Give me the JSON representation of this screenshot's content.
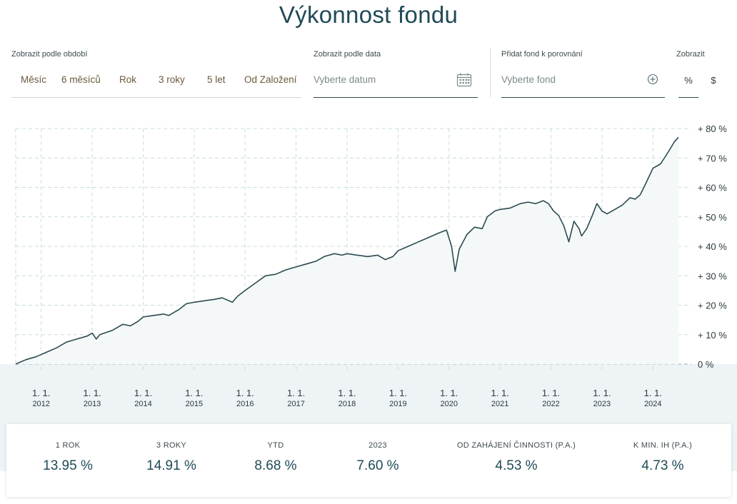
{
  "header": {
    "title": "Výkonnost fondu"
  },
  "filters": {
    "period_label": "Zobrazit podle období",
    "periods": [
      "Měsíc",
      "6 měsíců",
      "Rok",
      "3 roky",
      "5 let",
      "Od Založení"
    ],
    "date_label": "Zobrazit podle data",
    "date_placeholder": "Vyberte datum",
    "compare_label": "Přidat fond k porovnání",
    "compare_placeholder": "Vyberte fond",
    "units_label": "Zobrazit",
    "units": [
      "%",
      "$"
    ],
    "active_unit": "%"
  },
  "icons": {
    "calendar": "calendar-icon",
    "add": "plus-circle-icon"
  },
  "colors": {
    "line": "#2b4a50",
    "area": "#f4f8f9",
    "grid": "#c8dce0",
    "accent": "#1f4a55",
    "band": "#eef3f5"
  },
  "chart_data": {
    "type": "area",
    "title": "",
    "xlabel": "",
    "ylabel": "",
    "x_ticks": [
      [
        "1. 1.",
        "2012"
      ],
      [
        "1. 1.",
        "2013"
      ],
      [
        "1. 1.",
        "2014"
      ],
      [
        "1. 1.",
        "2015"
      ],
      [
        "1. 1.",
        "2016"
      ],
      [
        "1. 1.",
        "2017"
      ],
      [
        "1. 1.",
        "2018"
      ],
      [
        "1. 1.",
        "2019"
      ],
      [
        "1. 1.",
        "2020"
      ],
      [
        "1. 1.",
        "2021"
      ],
      [
        "1. 1.",
        "2022"
      ],
      [
        "1. 1.",
        "2023"
      ],
      [
        "1. 1.",
        "2024"
      ]
    ],
    "y_ticks": [
      "0 %",
      "+ 10 %",
      "+ 20 %",
      "+ 30 %",
      "+ 40 %",
      "+ 50 %",
      "+ 60 %",
      "+ 70 %",
      "+ 80 %"
    ],
    "ylim": [
      0,
      80
    ],
    "xlim": [
      2011.5,
      2024.5
    ],
    "grid": true,
    "series": [
      {
        "values": [
          [
            2011.5,
            0
          ],
          [
            2011.7,
            1.5
          ],
          [
            2011.9,
            2.5
          ],
          [
            2012.1,
            4
          ],
          [
            2012.3,
            5.5
          ],
          [
            2012.5,
            7.5
          ],
          [
            2012.7,
            8.5
          ],
          [
            2012.9,
            9.5
          ],
          [
            2013.0,
            10.5
          ],
          [
            2013.08,
            8.5
          ],
          [
            2013.15,
            10
          ],
          [
            2013.4,
            11.5
          ],
          [
            2013.6,
            13.5
          ],
          [
            2013.75,
            13
          ],
          [
            2013.9,
            14.5
          ],
          [
            2014.0,
            16
          ],
          [
            2014.2,
            16.5
          ],
          [
            2014.4,
            17
          ],
          [
            2014.5,
            16.5
          ],
          [
            2014.7,
            18.5
          ],
          [
            2014.85,
            20.5
          ],
          [
            2015.0,
            21
          ],
          [
            2015.2,
            21.5
          ],
          [
            2015.4,
            22
          ],
          [
            2015.55,
            22.5
          ],
          [
            2015.75,
            21
          ],
          [
            2015.85,
            23
          ],
          [
            2016.0,
            25
          ],
          [
            2016.2,
            27.5
          ],
          [
            2016.4,
            30
          ],
          [
            2016.6,
            30.5
          ],
          [
            2016.8,
            32
          ],
          [
            2017.0,
            33
          ],
          [
            2017.2,
            34
          ],
          [
            2017.4,
            35
          ],
          [
            2017.55,
            36.5
          ],
          [
            2017.75,
            37.5
          ],
          [
            2017.9,
            37
          ],
          [
            2018.0,
            37.5
          ],
          [
            2018.2,
            37
          ],
          [
            2018.4,
            36.5
          ],
          [
            2018.6,
            37
          ],
          [
            2018.75,
            35.5
          ],
          [
            2018.9,
            36.5
          ],
          [
            2019.0,
            38.5
          ],
          [
            2019.2,
            40
          ],
          [
            2019.4,
            41.5
          ],
          [
            2019.6,
            43
          ],
          [
            2019.8,
            44.5
          ],
          [
            2019.95,
            45.5
          ],
          [
            2020.05,
            40
          ],
          [
            2020.12,
            31.5
          ],
          [
            2020.2,
            39
          ],
          [
            2020.35,
            44
          ],
          [
            2020.5,
            46.5
          ],
          [
            2020.65,
            46
          ],
          [
            2020.75,
            50
          ],
          [
            2020.9,
            52
          ],
          [
            2021.0,
            52.5
          ],
          [
            2021.2,
            53
          ],
          [
            2021.4,
            54.5
          ],
          [
            2021.55,
            55
          ],
          [
            2021.7,
            54.5
          ],
          [
            2021.85,
            55.5
          ],
          [
            2021.95,
            54.5
          ],
          [
            2022.05,
            52
          ],
          [
            2022.15,
            50.5
          ],
          [
            2022.25,
            47
          ],
          [
            2022.35,
            41.5
          ],
          [
            2022.45,
            48.5
          ],
          [
            2022.55,
            46
          ],
          [
            2022.6,
            43.5
          ],
          [
            2022.7,
            46
          ],
          [
            2022.8,
            50
          ],
          [
            2022.9,
            54.5
          ],
          [
            2023.0,
            52
          ],
          [
            2023.1,
            51
          ],
          [
            2023.25,
            52.5
          ],
          [
            2023.4,
            54
          ],
          [
            2023.55,
            56.5
          ],
          [
            2023.65,
            56
          ],
          [
            2023.75,
            57.5
          ],
          [
            2023.85,
            61
          ],
          [
            2024.0,
            66.5
          ],
          [
            2024.15,
            68
          ],
          [
            2024.3,
            72
          ],
          [
            2024.42,
            75.5
          ],
          [
            2024.5,
            77
          ]
        ]
      }
    ]
  },
  "stats": [
    {
      "label": "1 ROK",
      "value": "13.95 %"
    },
    {
      "label": "3 ROKY",
      "value": "14.91 %"
    },
    {
      "label": "YTD",
      "value": "8.68 %"
    },
    {
      "label": "2023",
      "value": "7.60 %"
    },
    {
      "label": "OD ZAHÁJENÍ ČINNOSTI (P.A.)",
      "value": "4.53 %"
    },
    {
      "label": "K MIN. IH (P.A.)",
      "value": "4.73 %"
    }
  ]
}
